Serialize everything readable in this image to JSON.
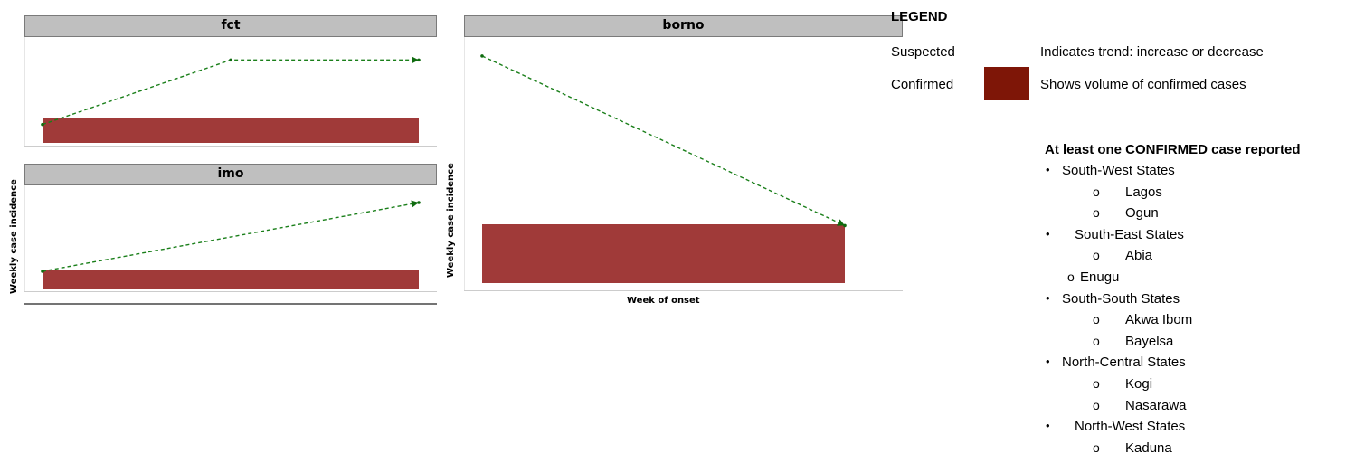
{
  "chart_data": [
    {
      "type": "bar",
      "panel": "fct",
      "series": [
        {
          "kind": "confirmed",
          "render": "bar",
          "color": "#a03a39",
          "values": [
            1
          ]
        },
        {
          "kind": "suspected",
          "render": "dashed-line",
          "color": "#1a7f1a",
          "points": [
            [
              1,
              1.0
            ],
            [
              2,
              4.5
            ],
            [
              3,
              4.5
            ]
          ]
        }
      ],
      "ylim": [
        0,
        5.5
      ],
      "xlabel": "",
      "ylabel": ""
    },
    {
      "type": "bar",
      "panel": "imo",
      "series": [
        {
          "kind": "confirmed",
          "render": "bar",
          "color": "#a03a39",
          "values": [
            1
          ]
        },
        {
          "kind": "suspected",
          "render": "dashed-line",
          "color": "#1a7f1a",
          "points": [
            [
              1,
              1.0
            ],
            [
              3,
              4.8
            ]
          ]
        }
      ],
      "ylim": [
        0,
        5.5
      ],
      "xlabel": "",
      "ylabel": "Weekly case incidence"
    },
    {
      "type": "bar",
      "panel": "borno",
      "series": [
        {
          "kind": "confirmed",
          "render": "bar",
          "color": "#a03a39",
          "values": [
            1
          ]
        },
        {
          "kind": "suspected",
          "render": "dashed-line",
          "color": "#1a7f1a",
          "points": [
            [
              1,
              3.95
            ],
            [
              3,
              1.0
            ]
          ]
        }
      ],
      "ylim": [
        0,
        4.2
      ],
      "xlabel": "Week of onset",
      "ylabel": "Weekly case incidence"
    }
  ],
  "panels": {
    "fct": {
      "title": "fct"
    },
    "imo": {
      "title": "imo"
    },
    "borno": {
      "title": "borno"
    }
  },
  "axis_labels": {
    "left_y": "Weekly case incidence",
    "right_y": "Weekly case incidence",
    "right_x": "Week of onset"
  },
  "legend": {
    "title": "LEGEND",
    "rows": [
      {
        "label": "Suspected",
        "description": "Indicates trend: increase or decrease"
      },
      {
        "label": "Confirmed",
        "description": "Shows volume of confirmed cases",
        "swatch_color": "#7e1607"
      }
    ]
  },
  "confirmed_list": {
    "title": "At least one CONFIRMED case reported",
    "regions": [
      {
        "name": "South-West States",
        "states": [
          "Lagos",
          "Ogun"
        ]
      },
      {
        "name": "South-East States",
        "states": [
          "Abia",
          "Enugu"
        ]
      },
      {
        "name": "South-South States",
        "states": [
          "Akwa Ibom",
          "Bayelsa"
        ]
      },
      {
        "name": "North-Central States",
        "states": [
          "Kogi",
          "Nasarawa"
        ]
      },
      {
        "name": "North-West States",
        "states": [
          "Kaduna"
        ]
      }
    ],
    "region_bullet": "•",
    "state_bullet": "o"
  }
}
